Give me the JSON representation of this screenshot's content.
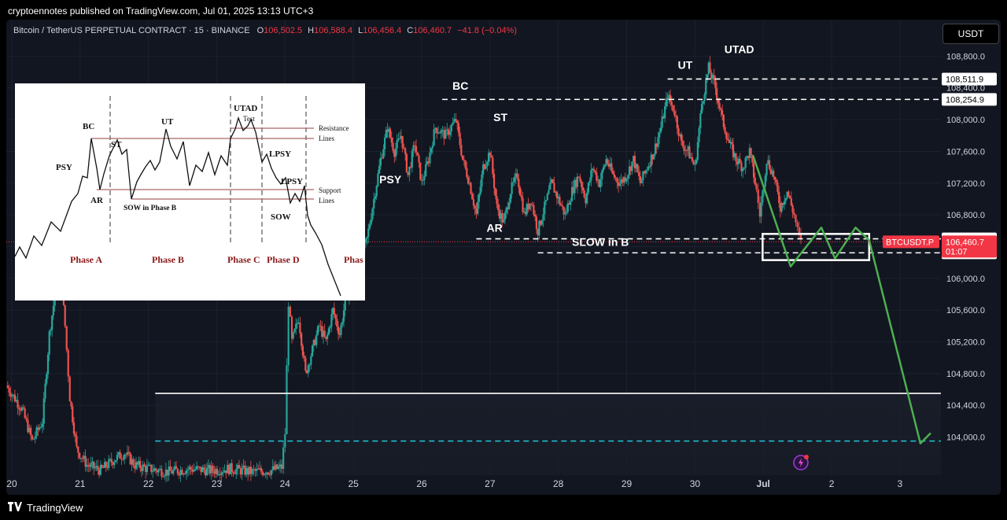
{
  "header": {
    "published_line": "cryptoennotes published on TradingView.com, Jul 01, 2025 13:13 UTC+3"
  },
  "legend": {
    "symbol": "Bitcoin / TetherUS PERPETUAL CONTRACT · 15 · BINANCE",
    "o_label": "O",
    "o_value": "106,502.5",
    "h_label": "H",
    "h_value": "106,588.4",
    "l_label": "L",
    "l_value": "106,456.4",
    "c_label": "C",
    "c_value": "106,460.7",
    "change": "−41.8 (−0.04%)"
  },
  "currency_button": "USDT",
  "footer": {
    "logo_text": "TradingView",
    "logo_icon": "tradingview-logo-icon"
  },
  "colors": {
    "background": "#121620",
    "bull": "#26a69a",
    "bear": "#ef5350",
    "projection": "#4caf50",
    "level_cyan": "#22c6d6",
    "price_tag": "#f23645"
  },
  "chart_data": {
    "type": "candlestick",
    "y_ticks": [
      "108,800.0",
      "108,400.0",
      "108,000.0",
      "107,600.0",
      "107,200.0",
      "106,800.0",
      "106,400.0",
      "106,000.0",
      "105,600.0",
      "105,200.0",
      "104,800.0",
      "104,400.0",
      "104,000.0"
    ],
    "y_tick_values": [
      108800,
      108400,
      108000,
      107600,
      107200,
      106800,
      106400,
      106000,
      105600,
      105200,
      104800,
      104400,
      104000
    ],
    "ylim": [
      103520,
      109260
    ],
    "x_labels": [
      "20",
      "21",
      "22",
      "23",
      "24",
      "25",
      "26",
      "27",
      "28",
      "29",
      "30",
      "Jul",
      "2",
      "3"
    ],
    "x_label_values": [
      20,
      21,
      22,
      23,
      24,
      25,
      26,
      27,
      28,
      29,
      30,
      31,
      32,
      33
    ],
    "xlim": [
      19.92,
      33.6
    ],
    "price_path": [
      [
        19.92,
        104650
      ],
      [
        20.15,
        104350
      ],
      [
        20.3,
        103950
      ],
      [
        20.45,
        104200
      ],
      [
        20.55,
        105300
      ],
      [
        20.65,
        105900
      ],
      [
        20.72,
        106050
      ],
      [
        20.78,
        105400
      ],
      [
        20.85,
        104500
      ],
      [
        20.95,
        103850
      ],
      [
        21.1,
        103650
      ],
      [
        21.3,
        103580
      ],
      [
        21.5,
        103720
      ],
      [
        21.65,
        103800
      ],
      [
        21.8,
        103650
      ],
      [
        22.0,
        103600
      ],
      [
        22.3,
        103560
      ],
      [
        22.6,
        103600
      ],
      [
        22.9,
        103580
      ],
      [
        23.2,
        103600
      ],
      [
        23.5,
        103560
      ],
      [
        23.8,
        103580
      ],
      [
        23.95,
        103620
      ],
      [
        24.0,
        104050
      ],
      [
        24.05,
        105700
      ],
      [
        24.1,
        105200
      ],
      [
        24.2,
        105500
      ],
      [
        24.3,
        104800
      ],
      [
        24.4,
        105100
      ],
      [
        24.5,
        105400
      ],
      [
        24.6,
        105200
      ],
      [
        24.7,
        105600
      ],
      [
        24.8,
        105300
      ],
      [
        24.9,
        105800
      ],
      [
        25.0,
        105900
      ],
      [
        25.1,
        106200
      ],
      [
        25.2,
        106500
      ],
      [
        25.3,
        107000
      ],
      [
        25.4,
        107500
      ],
      [
        25.5,
        107900
      ],
      [
        25.6,
        107600
      ],
      [
        25.7,
        107800
      ],
      [
        25.8,
        107300
      ],
      [
        25.9,
        107700
      ],
      [
        26.0,
        107200
      ],
      [
        26.1,
        107500
      ],
      [
        26.2,
        107900
      ],
      [
        26.35,
        107800
      ],
      [
        26.5,
        108000
      ],
      [
        26.6,
        107500
      ],
      [
        26.7,
        107200
      ],
      [
        26.8,
        106800
      ],
      [
        26.9,
        107400
      ],
      [
        27.0,
        107600
      ],
      [
        27.1,
        106900
      ],
      [
        27.2,
        106700
      ],
      [
        27.3,
        107100
      ],
      [
        27.4,
        107300
      ],
      [
        27.5,
        106800
      ],
      [
        27.6,
        107000
      ],
      [
        27.7,
        106600
      ],
      [
        27.8,
        106900
      ],
      [
        27.9,
        107200
      ],
      [
        28.0,
        107000
      ],
      [
        28.1,
        106800
      ],
      [
        28.2,
        107100
      ],
      [
        28.3,
        107300
      ],
      [
        28.4,
        107000
      ],
      [
        28.5,
        107400
      ],
      [
        28.6,
        107200
      ],
      [
        28.7,
        107500
      ],
      [
        28.8,
        107300
      ],
      [
        28.9,
        107200
      ],
      [
        29.0,
        107300
      ],
      [
        29.1,
        107500
      ],
      [
        29.2,
        107200
      ],
      [
        29.3,
        107400
      ],
      [
        29.4,
        107600
      ],
      [
        29.5,
        107900
      ],
      [
        29.6,
        108300
      ],
      [
        29.7,
        108100
      ],
      [
        29.8,
        107700
      ],
      [
        29.9,
        107600
      ],
      [
        30.0,
        107400
      ],
      [
        30.1,
        108200
      ],
      [
        30.2,
        108650
      ],
      [
        30.3,
        108400
      ],
      [
        30.4,
        108000
      ],
      [
        30.5,
        107700
      ],
      [
        30.6,
        107500
      ],
      [
        30.7,
        107400
      ],
      [
        30.8,
        107600
      ],
      [
        30.9,
        107100
      ],
      [
        30.95,
        106800
      ],
      [
        31.05,
        107500
      ],
      [
        31.15,
        107300
      ],
      [
        31.25,
        106900
      ],
      [
        31.35,
        107100
      ],
      [
        31.45,
        106800
      ],
      [
        31.5,
        106600
      ],
      [
        31.55,
        106460
      ]
    ],
    "levels": [
      {
        "price": 108511.9,
        "label": "108,511.9",
        "style": "dashed-white",
        "from": 29.6
      },
      {
        "price": 108254.9,
        "label": "108,254.9",
        "style": "dashed-white",
        "from": 26.3
      },
      {
        "price": 106498.4,
        "label": "106,498.4",
        "style": "dashed-white",
        "from": 26.8
      },
      {
        "price": 106321.8,
        "label": "106,321.8",
        "style": "dashed-white",
        "from": 27.7
      },
      {
        "price": 104550,
        "label": "",
        "style": "solid-white",
        "from": 22.1
      },
      {
        "price": 103950,
        "label": "",
        "style": "dashed-cyan",
        "from": 22.1
      }
    ],
    "current_price": {
      "price": 106460.7,
      "label": "106,460.7",
      "timer": "01:07",
      "symbol_tag": "BTCUSDT.P"
    },
    "box": {
      "x0": 30.99,
      "x1": 32.55,
      "y0": 106560,
      "y1": 106230
    },
    "projection": [
      [
        30.85,
        107550
      ],
      [
        31.4,
        106150
      ],
      [
        31.85,
        106640
      ],
      [
        32.05,
        106250
      ],
      [
        32.35,
        106640
      ],
      [
        32.55,
        106480
      ],
      [
        33.3,
        103920
      ],
      [
        33.45,
        104050
      ]
    ],
    "annotations": [
      {
        "text": "BC",
        "x": 26.45,
        "price": 108380
      },
      {
        "text": "ST",
        "x": 27.05,
        "price": 107980
      },
      {
        "text": "PSY",
        "x": 25.38,
        "price": 107200
      },
      {
        "text": "AR",
        "x": 26.95,
        "price": 106590
      },
      {
        "text": "SLOW in B",
        "x": 28.2,
        "price": 106410
      },
      {
        "text": "UT",
        "x": 29.75,
        "price": 108640
      },
      {
        "text": "UTAD",
        "x": 30.43,
        "price": 108840
      }
    ]
  },
  "wyckoff_schematic": {
    "labels": [
      "PSY",
      "BC",
      "ST",
      "AR",
      "UT",
      "SOW in Phase B",
      "UTAD",
      "Test",
      "LPSY",
      "LPSY",
      "SOW",
      "Resistance",
      "Lines",
      "Support",
      "Lines"
    ],
    "phases": [
      "Phase A",
      "Phase B",
      "Phase C",
      "Phase D",
      "Phas"
    ]
  }
}
